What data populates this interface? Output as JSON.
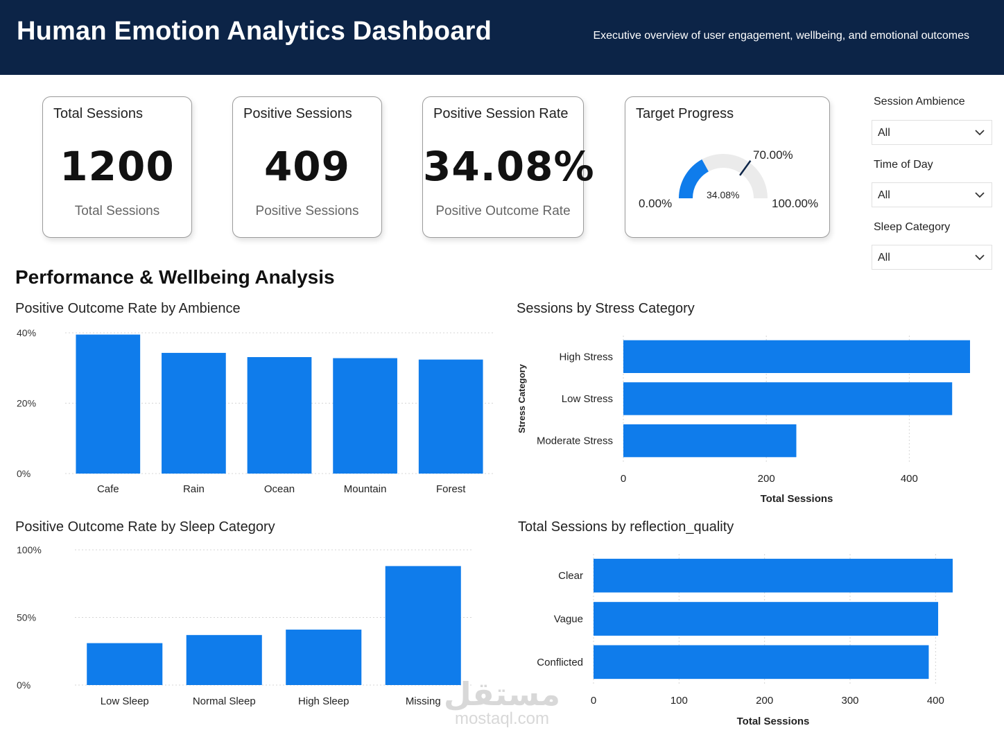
{
  "header": {
    "title": "Human Emotion Analytics Dashboard",
    "subtitle": "Executive overview of user engagement, wellbeing, and emotional outcomes"
  },
  "cards": {
    "total_sessions": {
      "title": "Total Sessions",
      "value": "1200",
      "sub": "Total Sessions"
    },
    "positive_sessions": {
      "title": "Positive Sessions",
      "value": "409",
      "sub": "Positive Sessions"
    },
    "positive_rate": {
      "title": "Positive Session Rate",
      "value": "34.08%",
      "sub": "Positive Outcome Rate"
    },
    "target_progress": {
      "title": "Target Progress",
      "min_label": "0.00%",
      "max_label": "100.00%",
      "target_label": "70.00%",
      "value_label": "34.08%",
      "value": 34.08,
      "target": 70,
      "min": 0,
      "max": 100
    }
  },
  "filters": {
    "session_ambience": {
      "label": "Session Ambience",
      "value": "All"
    },
    "time_of_day": {
      "label": "Time of Day",
      "value": "All"
    },
    "sleep_category": {
      "label": "Sleep Category",
      "value": "All"
    }
  },
  "section_title": "Performance & Wellbeing Analysis",
  "colors": {
    "header_bg": "#0c2447",
    "bar": "#0f7ceb",
    "gauge_track": "#ebebeb",
    "needle": "#0c2447"
  },
  "watermark": {
    "arabic": "مستقل",
    "latin": "mostaql.com"
  },
  "chart_data": [
    {
      "id": "ambience",
      "type": "bar",
      "title": "Positive Outcome Rate by Ambience",
      "categories": [
        "Cafe",
        "Rain",
        "Ocean",
        "Mountain",
        "Forest"
      ],
      "values": [
        39.5,
        34.3,
        33.1,
        32.8,
        32.4
      ],
      "ylim": [
        0,
        40
      ],
      "yticks": [
        "0%",
        "20%",
        "40%"
      ],
      "ytick_values": [
        0,
        20,
        40
      ],
      "grid": true
    },
    {
      "id": "stress",
      "type": "bar",
      "orientation": "horizontal",
      "title": "Sessions by Stress Category",
      "categories": [
        "High Stress",
        "Low Stress",
        "Moderate Stress"
      ],
      "values": [
        485,
        460,
        242
      ],
      "xlim": [
        0,
        485
      ],
      "xticks": [
        "0",
        "200",
        "400"
      ],
      "xtick_values": [
        0,
        200,
        400
      ],
      "xlabel": "Total Sessions",
      "ylabel": "Stress Category",
      "grid": true
    },
    {
      "id": "sleep",
      "type": "bar",
      "title": "Positive Outcome Rate by Sleep Category",
      "categories": [
        "Low Sleep",
        "Normal Sleep",
        "High Sleep",
        "Missing"
      ],
      "values": [
        31,
        37,
        41,
        88
      ],
      "ylim": [
        0,
        100
      ],
      "yticks": [
        "0%",
        "50%",
        "100%"
      ],
      "ytick_values": [
        0,
        50,
        100
      ],
      "grid": true
    },
    {
      "id": "reflection",
      "type": "bar",
      "orientation": "horizontal",
      "title": "Total Sessions by reflection_quality",
      "categories": [
        "Clear",
        "Vague",
        "Conflicted"
      ],
      "values": [
        420,
        403,
        392
      ],
      "xlim": [
        0,
        420
      ],
      "xticks": [
        "0",
        "100",
        "200",
        "300",
        "400"
      ],
      "xtick_values": [
        0,
        100,
        200,
        300,
        400
      ],
      "xlabel": "Total Sessions",
      "grid": true
    }
  ]
}
